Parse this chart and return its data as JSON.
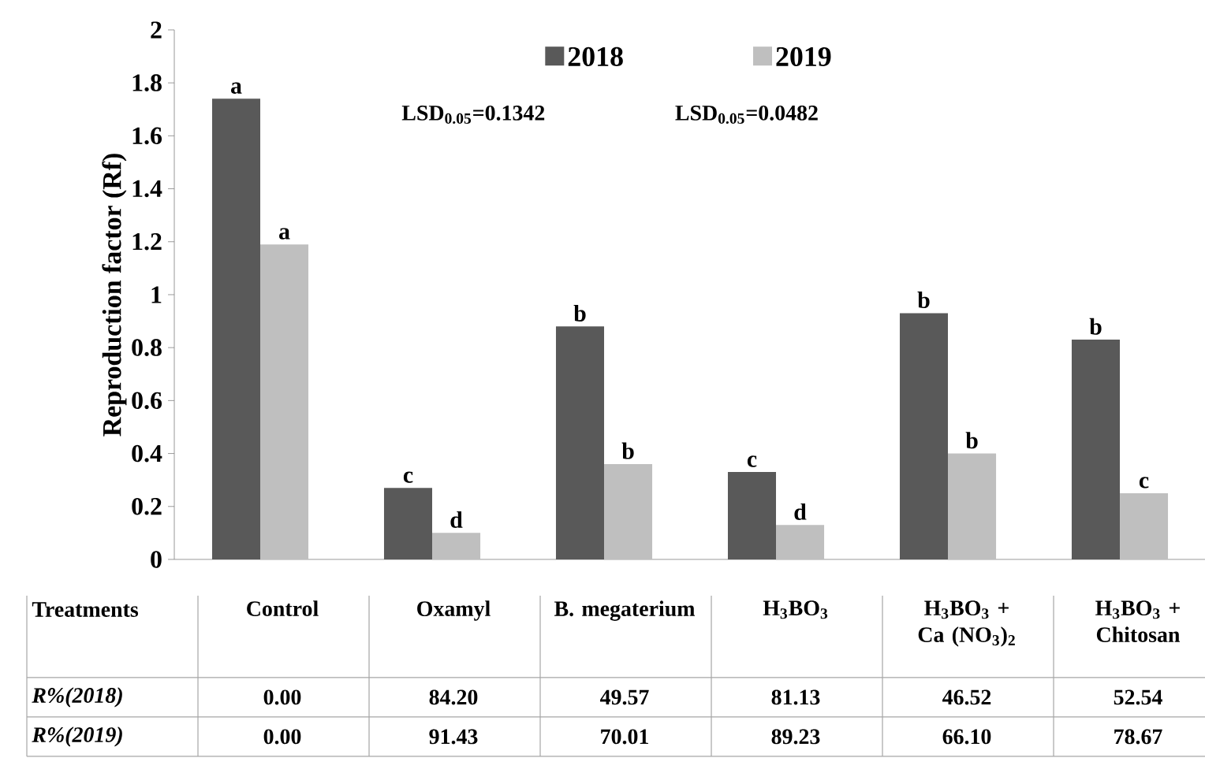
{
  "chart_data": {
    "type": "bar",
    "ylabel": "Reproduction factor (Rf)",
    "xlabel": "Treatments",
    "categories": [
      "Control",
      "Oxamyl",
      "B. megaterium",
      "H$_{3}$BO$_{3}$",
      "H$_{3}$BO$_{3}$ + Ca (NO$_{3}$)$_{2}$",
      "H$_{3}$BO$_{3}$ + Chitosan"
    ],
    "series": [
      {
        "name": "2018",
        "color": "#595959",
        "values": [
          1.74,
          0.27,
          0.88,
          0.33,
          0.93,
          0.83
        ],
        "value_labels": [
          "a",
          "c",
          "b",
          "c",
          "b",
          "b"
        ]
      },
      {
        "name": "2019",
        "color": "#bfbfbf",
        "values": [
          1.19,
          0.1,
          0.36,
          0.13,
          0.4,
          0.25
        ],
        "value_labels": [
          "a",
          "d",
          "b",
          "d",
          "b",
          "c"
        ]
      }
    ],
    "ylim": [
      0,
      2
    ],
    "yticks": [
      0,
      0.2,
      0.4,
      0.6,
      0.8,
      1,
      1.2,
      1.4,
      1.6,
      1.8,
      2
    ],
    "legend": "top",
    "grid": false,
    "annotations": [
      "LSD$_{0.05}$=0.1342",
      "LSD$_{0.05}$=0.0482",
      "R%(2018)",
      "0.00",
      "84.20",
      "49.57",
      "81.13",
      "46.52",
      "52.54",
      "R%(2019)",
      "0.00",
      "91.43",
      "70.01",
      "89.23",
      "66.10",
      "78.67"
    ]
  }
}
